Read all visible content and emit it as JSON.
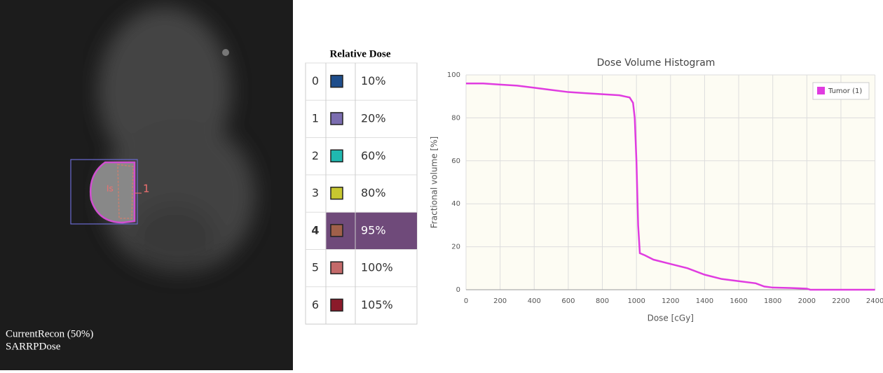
{
  "image": {
    "labels": [
      "CurrentRecon (50%)",
      "SARRPDose"
    ],
    "roi_labels": [
      "Is",
      "1"
    ]
  },
  "dose_table": {
    "title": "Relative Dose",
    "selected_row": 4,
    "rows": [
      {
        "index": "0",
        "color": "#1f4e8c",
        "label": "10%"
      },
      {
        "index": "1",
        "color": "#7b6db0",
        "label": "20%"
      },
      {
        "index": "2",
        "color": "#20b8b0",
        "label": "60%"
      },
      {
        "index": "3",
        "color": "#c8c830",
        "label": "80%"
      },
      {
        "index": "4",
        "color": "#a0604a",
        "label": "95%"
      },
      {
        "index": "5",
        "color": "#c46a6a",
        "label": "100%"
      },
      {
        "index": "6",
        "color": "#8b1a2a",
        "label": "105%"
      }
    ]
  },
  "chart_data": {
    "type": "line",
    "title": "Dose Volume Histogram",
    "xlabel": "Dose [cGy]",
    "ylabel": "Fractional volume [%]",
    "x": [
      0,
      100,
      200,
      300,
      400,
      500,
      600,
      700,
      800,
      900,
      960,
      980,
      990,
      1000,
      1010,
      1020,
      1050,
      1100,
      1200,
      1300,
      1400,
      1500,
      1600,
      1700,
      1750,
      1800,
      1900,
      2000,
      2020,
      2400
    ],
    "series": [
      {
        "name": "Tumor (1)",
        "color": "#e03ce0",
        "values": [
          96,
          96,
          95.5,
          95,
          94,
          93,
          92,
          91.5,
          91,
          90.5,
          89.5,
          87,
          80,
          60,
          30,
          17,
          16,
          14,
          12,
          10,
          7,
          5,
          4,
          3,
          1.5,
          1,
          0.8,
          0.5,
          0,
          0
        ]
      }
    ],
    "xlim": [
      0,
      2400
    ],
    "ylim": [
      0,
      100
    ],
    "xticks": [
      0,
      200,
      400,
      600,
      800,
      1000,
      1200,
      1400,
      1600,
      1800,
      2000,
      2200,
      2400
    ],
    "yticks": [
      0,
      20,
      40,
      60,
      80,
      100
    ],
    "grid": true,
    "legend": "top-right"
  }
}
